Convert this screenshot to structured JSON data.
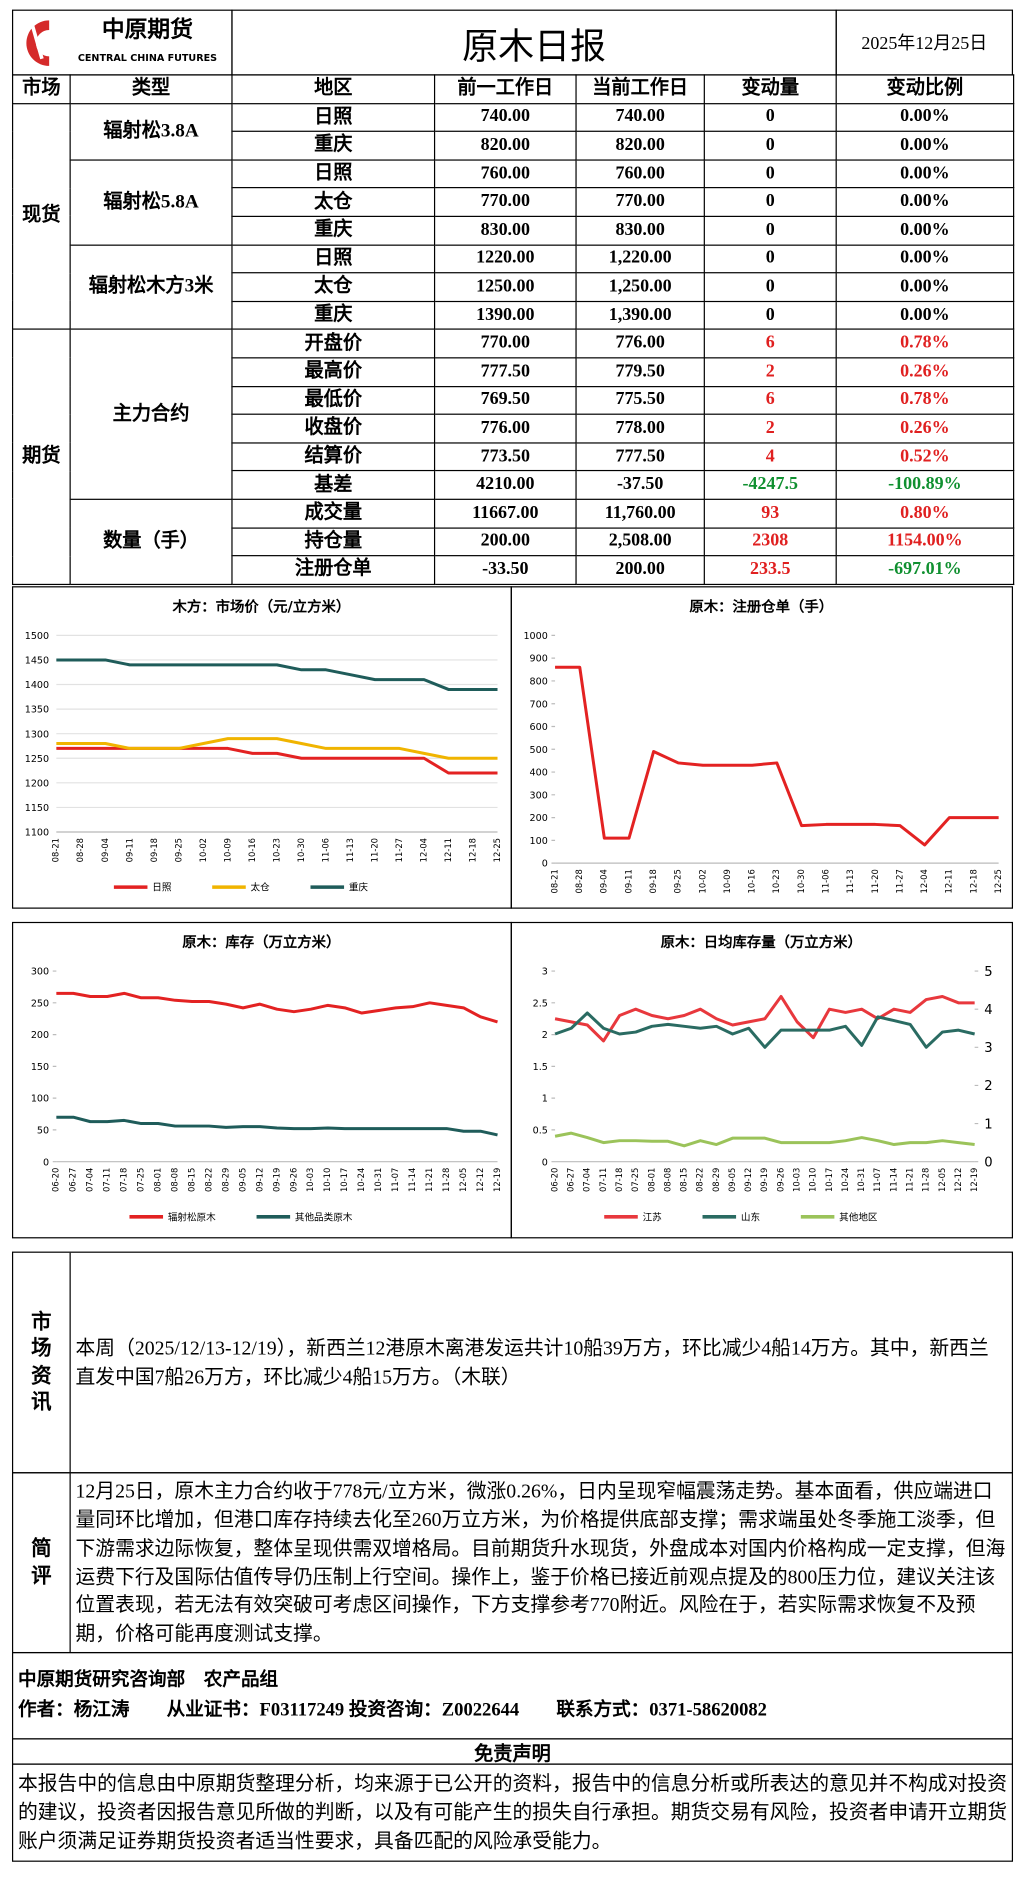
{
  "header": {
    "logo_cn": "中原期货",
    "logo_en": "CENTRAL CHINA FUTURES",
    "title": "原木日报",
    "date": "2025年12月25日"
  },
  "table": {
    "columns": [
      "市场",
      "类型",
      "地区",
      "前一工作日",
      "当前工作日",
      "变动量",
      "变动比例"
    ],
    "groups": [
      {
        "market": "现货",
        "types": [
          {
            "type": "辐射松3.8A",
            "rows": [
              [
                "日照",
                "740.00",
                "740.00",
                "0",
                "0.00%"
              ],
              [
                "重庆",
                "820.00",
                "820.00",
                "0",
                "0.00%"
              ]
            ]
          },
          {
            "type": "辐射松5.8A",
            "rows": [
              [
                "日照",
                "760.00",
                "760.00",
                "0",
                "0.00%"
              ],
              [
                "太仓",
                "770.00",
                "770.00",
                "0",
                "0.00%"
              ],
              [
                "重庆",
                "830.00",
                "830.00",
                "0",
                "0.00%"
              ]
            ]
          },
          {
            "type": "辐射松木方3米",
            "rows": [
              [
                "日照",
                "1220.00",
                "1,220.00",
                "0",
                "0.00%"
              ],
              [
                "太仓",
                "1250.00",
                "1,250.00",
                "0",
                "0.00%"
              ],
              [
                "重庆",
                "1390.00",
                "1,390.00",
                "0",
                "0.00%"
              ]
            ]
          }
        ]
      },
      {
        "market": "期货",
        "types": [
          {
            "type": "主力合约",
            "rows": [
              [
                "开盘价",
                "770.00",
                "776.00",
                "6",
                "0.78%"
              ],
              [
                "最高价",
                "777.50",
                "779.50",
                "2",
                "0.26%"
              ],
              [
                "最低价",
                "769.50",
                "775.50",
                "6",
                "0.78%"
              ],
              [
                "收盘价",
                "776.00",
                "778.00",
                "2",
                "0.26%"
              ],
              [
                "结算价",
                "773.50",
                "777.50",
                "4",
                "0.52%"
              ],
              [
                "基差",
                "4210.00",
                "-37.50",
                "-4247.5",
                "-100.89%"
              ]
            ]
          },
          {
            "type": "数量（手）",
            "rows": [
              [
                "成交量",
                "11667.00",
                "11,760.00",
                "93",
                "0.80%"
              ],
              [
                "持仓量",
                "200.00",
                "2,508.00",
                "2308",
                "1154.00%"
              ],
              [
                "注册仓单",
                "-33.50",
                "200.00",
                "233.5",
                "-697.01%"
              ]
            ]
          }
        ]
      }
    ]
  },
  "chart_data": [
    {
      "type": "line",
      "title": "木方：市场价（元/立方米）",
      "grid": true,
      "categories": [
        "08-21",
        "08-28",
        "09-04",
        "09-11",
        "09-18",
        "09-25",
        "10-02",
        "10-09",
        "10-16",
        "10-23",
        "10-30",
        "11-06",
        "11-13",
        "11-20",
        "11-27",
        "12-04",
        "12-11",
        "12-18",
        "12-25"
      ],
      "series": [
        {
          "name": "日照",
          "color": "#e32222",
          "values": [
            1270,
            1270,
            1270,
            1270,
            1270,
            1270,
            1270,
            1270,
            1260,
            1260,
            1250,
            1250,
            1250,
            1250,
            1250,
            1250,
            1220,
            1220,
            1220
          ]
        },
        {
          "name": "太仓",
          "color": "#f0b400",
          "values": [
            1280,
            1280,
            1280,
            1270,
            1270,
            1270,
            1280,
            1290,
            1290,
            1290,
            1280,
            1270,
            1270,
            1270,
            1270,
            1260,
            1250,
            1250,
            1250
          ]
        },
        {
          "name": "重庆",
          "color": "#1f5c5a",
          "values": [
            1450,
            1450,
            1450,
            1440,
            1440,
            1440,
            1440,
            1440,
            1440,
            1440,
            1430,
            1430,
            1420,
            1410,
            1410,
            1410,
            1390,
            1390,
            1390
          ]
        }
      ],
      "ylim": [
        1100,
        1500
      ],
      "yticks": [
        1100,
        1150,
        1200,
        1250,
        1300,
        1350,
        1400,
        1450,
        1500
      ]
    },
    {
      "type": "line",
      "title": "原木：注册仓单（手）",
      "grid": false,
      "categories": [
        "08-21",
        "08-28",
        "09-04",
        "09-11",
        "09-18",
        "09-25",
        "10-02",
        "10-09",
        "10-16",
        "10-23",
        "10-30",
        "11-06",
        "11-13",
        "11-20",
        "11-27",
        "12-04",
        "12-11",
        "12-18",
        "12-25"
      ],
      "series": [
        {
          "color": "#e32222",
          "values": [
            860,
            860,
            110,
            110,
            490,
            440,
            430,
            430,
            430,
            440,
            165,
            170,
            170,
            170,
            165,
            80,
            200,
            200,
            200
          ]
        }
      ],
      "ylim": [
        0,
        1000
      ],
      "yticks": [
        0,
        100,
        200,
        300,
        400,
        500,
        600,
        700,
        800,
        900,
        1000
      ]
    },
    {
      "type": "line",
      "title": "原木：库存（万立方米）",
      "grid": false,
      "categories": [
        "06-20",
        "06-27",
        "07-04",
        "07-11",
        "07-18",
        "07-25",
        "08-01",
        "08-08",
        "08-15",
        "08-22",
        "08-29",
        "09-05",
        "09-12",
        "09-19",
        "09-26",
        "10-03",
        "10-10",
        "10-17",
        "10-24",
        "10-31",
        "11-07",
        "11-14",
        "11-21",
        "11-28",
        "12-05",
        "12-12",
        "12-19"
      ],
      "series": [
        {
          "name": "辐射松原木",
          "color": "#e32222",
          "values": [
            265,
            265,
            260,
            260,
            265,
            258,
            258,
            254,
            252,
            252,
            248,
            242,
            248,
            240,
            236,
            240,
            246,
            242,
            234,
            238,
            242,
            244,
            250,
            246,
            242,
            228,
            220
          ]
        },
        {
          "name": "其他品类原木",
          "color": "#1f5c5a",
          "values": [
            70,
            70,
            63,
            63,
            65,
            60,
            60,
            56,
            56,
            56,
            54,
            55,
            55,
            53,
            52,
            52,
            53,
            52,
            52,
            52,
            52,
            52,
            52,
            52,
            48,
            48,
            42
          ]
        }
      ],
      "ylim": [
        0,
        300
      ],
      "yticks": [
        0,
        50,
        100,
        150,
        200,
        250,
        300
      ]
    },
    {
      "type": "line",
      "title": "原木：日均库存量（万立方米）",
      "grid": false,
      "categories": [
        "06-20",
        "06-27",
        "07-04",
        "07-11",
        "07-18",
        "07-25",
        "08-01",
        "08-08",
        "08-15",
        "08-22",
        "08-29",
        "09-05",
        "09-12",
        "09-19",
        "09-26",
        "10-03",
        "10-10",
        "10-17",
        "10-24",
        "10-31",
        "11-07",
        "11-14",
        "11-21",
        "11-28",
        "12-05",
        "12-12",
        "12-19"
      ],
      "series": [
        {
          "name": "江苏",
          "color": "#e8383d",
          "values": [
            2.25,
            2.2,
            2.15,
            1.9,
            2.3,
            2.4,
            2.3,
            2.25,
            2.3,
            2.4,
            2.25,
            2.15,
            2.2,
            2.25,
            2.6,
            2.2,
            1.95,
            2.4,
            2.35,
            2.4,
            2.25,
            2.4,
            2.35,
            2.55,
            2.6,
            2.5,
            2.5
          ]
        },
        {
          "name": "山东",
          "color": "#2a6b62",
          "axis": "y2",
          "values": [
            3.35,
            3.5,
            3.9,
            3.5,
            3.35,
            3.4,
            3.55,
            3.6,
            3.55,
            3.5,
            3.55,
            3.35,
            3.5,
            3.0,
            3.45,
            3.45,
            3.45,
            3.45,
            3.55,
            3.05,
            3.8,
            3.7,
            3.6,
            3.0,
            3.4,
            3.45,
            3.35
          ]
        },
        {
          "name": "其他地区",
          "color": "#9bc35a",
          "values": [
            0.4,
            0.45,
            0.38,
            0.3,
            0.33,
            0.33,
            0.32,
            0.32,
            0.25,
            0.33,
            0.27,
            0.37,
            0.37,
            0.37,
            0.3,
            0.3,
            0.3,
            0.3,
            0.33,
            0.38,
            0.33,
            0.27,
            0.3,
            0.3,
            0.33,
            0.3,
            0.27
          ]
        }
      ],
      "ylim": [
        0,
        3
      ],
      "yticks": [
        0,
        0.5,
        1,
        1.5,
        2,
        2.5,
        3
      ],
      "y2lim": [
        0,
        5
      ],
      "y2ticks": [
        0,
        1,
        2,
        3,
        4,
        5
      ]
    }
  ],
  "sections": [
    {
      "label": "市场资讯",
      "text": "本周（2025/12/13-12/19），新西兰12港原木离港发运共计10船39万方，环比减少4船14万方。其中，新西兰直发中国7船26万方，环比减少4船15万方。（木联）"
    },
    {
      "label": "简评",
      "text": "12月25日，原木主力合约收于778元/立方米，微涨0.26%，日内呈现窄幅震荡走势。基本面看，供应端进口量同环比增加，但港口库存持续去化至260万立方米，为价格提供底部支撑；需求端虽处冬季施工淡季，但下游需求边际恢复，整体呈现供需双增格局。目前期货升水现货，外盘成本对国内价格构成一定支撑，但海运费下行及国际估值传导仍压制上行空间。操作上，鉴于价格已接近前观点提及的800压力位，建议关注该位置表现，若无法有效突破可考虑区间操作，下方支撑参考770附近。风险在于，若实际需求恢复不及预期，价格可能再度测试支撑。"
    }
  ],
  "footer": {
    "lines": [
      "中原期货研究咨询部　农产品组",
      "作者：杨江涛　　从业证书：F03117249 投资咨询：Z0022644　　联系方式：0371-58620082"
    ]
  },
  "disclaimer": {
    "title": "免责声明",
    "text": "本报告中的信息由中原期货整理分析，均来源于已公开的资料，报告中的信息分析或所表达的意见并不构成对投资的建议，投资者因报告意见所做的判断，以及有可能产生的损失自行承担。期货交易有风险，投资者申请开立期货账户须满足证券期货投资者适当性要求，具备匹配的风险承受能力。"
  }
}
